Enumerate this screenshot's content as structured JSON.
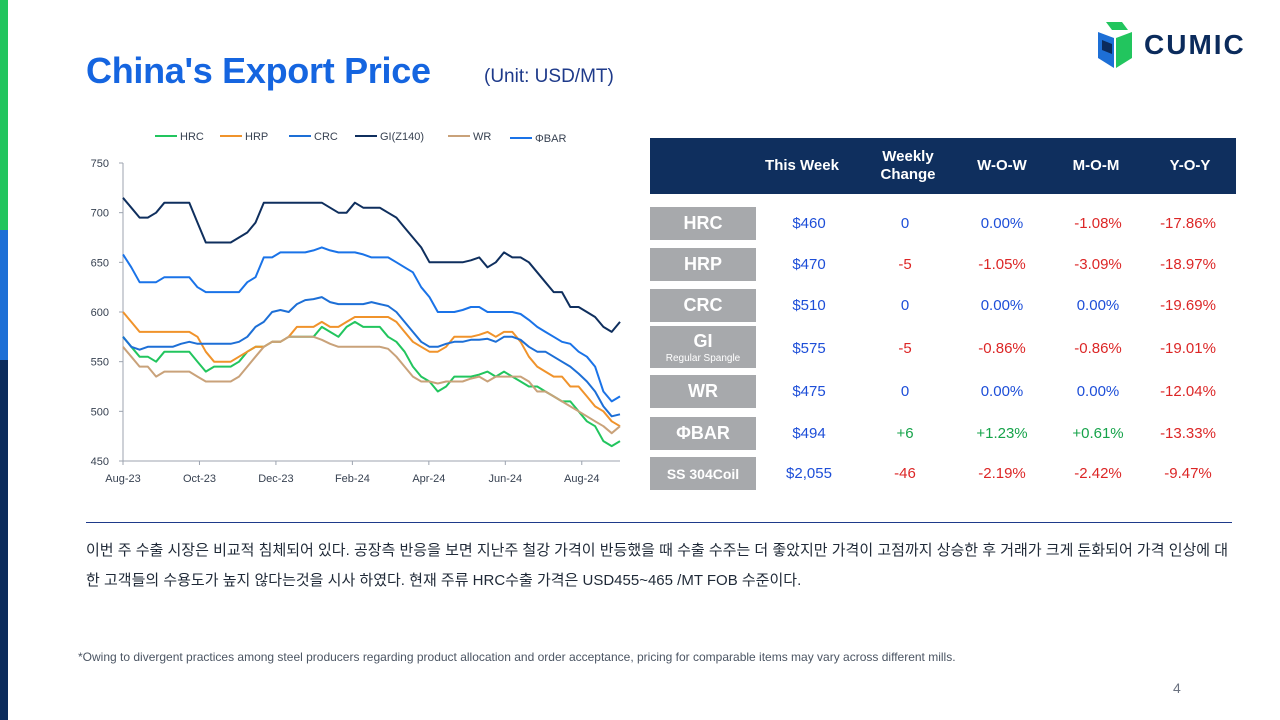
{
  "title": "China's Export Price",
  "unit": "(Unit: USD/MT)",
  "brand": {
    "name": "CUMIC",
    "colors": {
      "green": "#22c55e",
      "blue": "#1d6fd6",
      "navy": "#0b2b5c"
    }
  },
  "chart_data": {
    "type": "line",
    "ylim": [
      450,
      750
    ],
    "yticks": [
      450,
      500,
      550,
      600,
      650,
      700,
      750
    ],
    "xticks": [
      "Aug-23",
      "Oct-23",
      "Dec-23",
      "Feb-24",
      "Apr-24",
      "Jun-24",
      "Aug-24"
    ],
    "legend_position": "top",
    "grid": false,
    "series": [
      {
        "name": "HRC",
        "color": "#22c55e",
        "values": [
          575,
          565,
          555,
          555,
          550,
          560,
          560,
          560,
          560,
          550,
          540,
          545,
          545,
          545,
          550,
          560,
          565,
          565,
          570,
          570,
          575,
          575,
          575,
          575,
          585,
          580,
          575,
          585,
          590,
          585,
          585,
          585,
          575,
          570,
          560,
          545,
          535,
          530,
          520,
          525,
          535,
          535,
          535,
          537,
          540,
          535,
          540,
          535,
          530,
          525,
          525,
          520,
          515,
          510,
          510,
          500,
          490,
          485,
          470,
          465,
          470
        ]
      },
      {
        "name": "HRP",
        "color": "#f0932b",
        "values": [
          600,
          590,
          580,
          580,
          580,
          580,
          580,
          580,
          580,
          575,
          560,
          550,
          550,
          550,
          555,
          560,
          565,
          565,
          570,
          570,
          575,
          585,
          585,
          585,
          590,
          585,
          585,
          590,
          595,
          595,
          595,
          595,
          595,
          590,
          580,
          570,
          565,
          560,
          560,
          565,
          575,
          575,
          575,
          577,
          580,
          575,
          580,
          580,
          570,
          555,
          545,
          540,
          535,
          535,
          525,
          525,
          515,
          505,
          500,
          490,
          485
        ]
      },
      {
        "name": "CRC",
        "color": "#1d6fd6",
        "values": [
          575,
          565,
          562,
          565,
          565,
          565,
          565,
          568,
          570,
          568,
          568,
          568,
          568,
          568,
          570,
          575,
          585,
          590,
          600,
          602,
          600,
          608,
          612,
          613,
          615,
          610,
          608,
          608,
          608,
          608,
          610,
          608,
          606,
          600,
          590,
          580,
          570,
          565,
          565,
          568,
          570,
          570,
          572,
          572,
          573,
          570,
          575,
          575,
          572,
          565,
          560,
          560,
          555,
          550,
          545,
          538,
          530,
          520,
          505,
          495,
          497
        ]
      },
      {
        "name": "GI(Z140)",
        "color": "#0f2f5e",
        "values": [
          715,
          705,
          695,
          695,
          700,
          710,
          710,
          710,
          710,
          690,
          670,
          670,
          670,
          670,
          675,
          680,
          690,
          710,
          710,
          710,
          710,
          710,
          710,
          710,
          710,
          705,
          700,
          700,
          710,
          705,
          705,
          705,
          700,
          695,
          685,
          675,
          665,
          650,
          650,
          650,
          650,
          650,
          652,
          655,
          645,
          650,
          660,
          655,
          655,
          650,
          640,
          630,
          620,
          620,
          605,
          605,
          600,
          595,
          585,
          580,
          590
        ]
      },
      {
        "name": "WR",
        "color": "#c9a27a",
        "values": [
          565,
          555,
          545,
          545,
          535,
          540,
          540,
          540,
          540,
          535,
          530,
          530,
          530,
          530,
          535,
          545,
          555,
          565,
          570,
          570,
          575,
          575,
          575,
          575,
          572,
          568,
          565,
          565,
          565,
          565,
          565,
          565,
          563,
          555,
          545,
          535,
          530,
          530,
          528,
          530,
          530,
          530,
          533,
          535,
          530,
          535,
          535,
          535,
          535,
          530,
          520,
          520,
          515,
          510,
          505,
          500,
          495,
          490,
          485,
          478,
          485
        ]
      },
      {
        "name": "ΦBAR",
        "color": "#1a73e8",
        "values": [
          658,
          645,
          630,
          630,
          630,
          635,
          635,
          635,
          635,
          625,
          620,
          620,
          620,
          620,
          620,
          630,
          635,
          655,
          655,
          660,
          660,
          660,
          660,
          662,
          665,
          662,
          660,
          660,
          660,
          658,
          655,
          655,
          655,
          650,
          645,
          640,
          625,
          615,
          600,
          600,
          600,
          602,
          605,
          605,
          600,
          600,
          600,
          600,
          598,
          592,
          585,
          580,
          575,
          570,
          568,
          560,
          555,
          545,
          520,
          510,
          515
        ]
      }
    ]
  },
  "table": {
    "headers": [
      "This Week",
      "Weekly\nChange",
      "W-O-W",
      "M-O-M",
      "Y-O-Y"
    ],
    "rows": [
      {
        "label": "HRC",
        "sub": "",
        "this_week": "$460",
        "weekly": "0",
        "wow": "0.00%",
        "mom": "-1.08%",
        "yoy": "-17.86%"
      },
      {
        "label": "HRP",
        "sub": "",
        "this_week": "$470",
        "weekly": "-5",
        "wow": "-1.05%",
        "mom": "-3.09%",
        "yoy": "-18.97%"
      },
      {
        "label": "CRC",
        "sub": "",
        "this_week": "$510",
        "weekly": "0",
        "wow": "0.00%",
        "mom": "0.00%",
        "yoy": "-19.69%"
      },
      {
        "label": "GI",
        "sub": "Regular Spangle",
        "this_week": "$575",
        "weekly": "-5",
        "wow": "-0.86%",
        "mom": "-0.86%",
        "yoy": "-19.01%"
      },
      {
        "label": "WR",
        "sub": "",
        "this_week": "$475",
        "weekly": "0",
        "wow": "0.00%",
        "mom": "0.00%",
        "yoy": "-12.04%"
      },
      {
        "label": "ΦBAR",
        "sub": "",
        "this_week": "$494",
        "weekly": "+6",
        "wow": "+1.23%",
        "mom": "+0.61%",
        "yoy": "-13.33%"
      },
      {
        "label": "SS 304Coil",
        "sub": "",
        "this_week": "$2,055",
        "weekly": "-46",
        "wow": "-2.19%",
        "mom": "-2.42%",
        "yoy": "-9.47%"
      }
    ],
    "colors": {
      "neutral": "#1d4ed8",
      "positive": "#16a34a",
      "negative": "#dc2626"
    }
  },
  "summary": "이번 주 수출 시장은 비교적 침체되어 있다. 공장측 반응을 보면 지난주 철강 가격이 반등했을 때 수출 수주는 더 좋았지만 가격이 고점까지 상승한 후 거래가 크게 둔화되어 가격 인상에 대한 고객들의 수용도가 높지 않다는것을 시사 하였다. 현재 주류 HRC수출 가격은 USD455~465 /MT FOB 수준이다.",
  "footnote": "*Owing to divergent practices among steel producers regarding product allocation and order acceptance, pricing for comparable items may vary across different mills.",
  "page_number": "4"
}
